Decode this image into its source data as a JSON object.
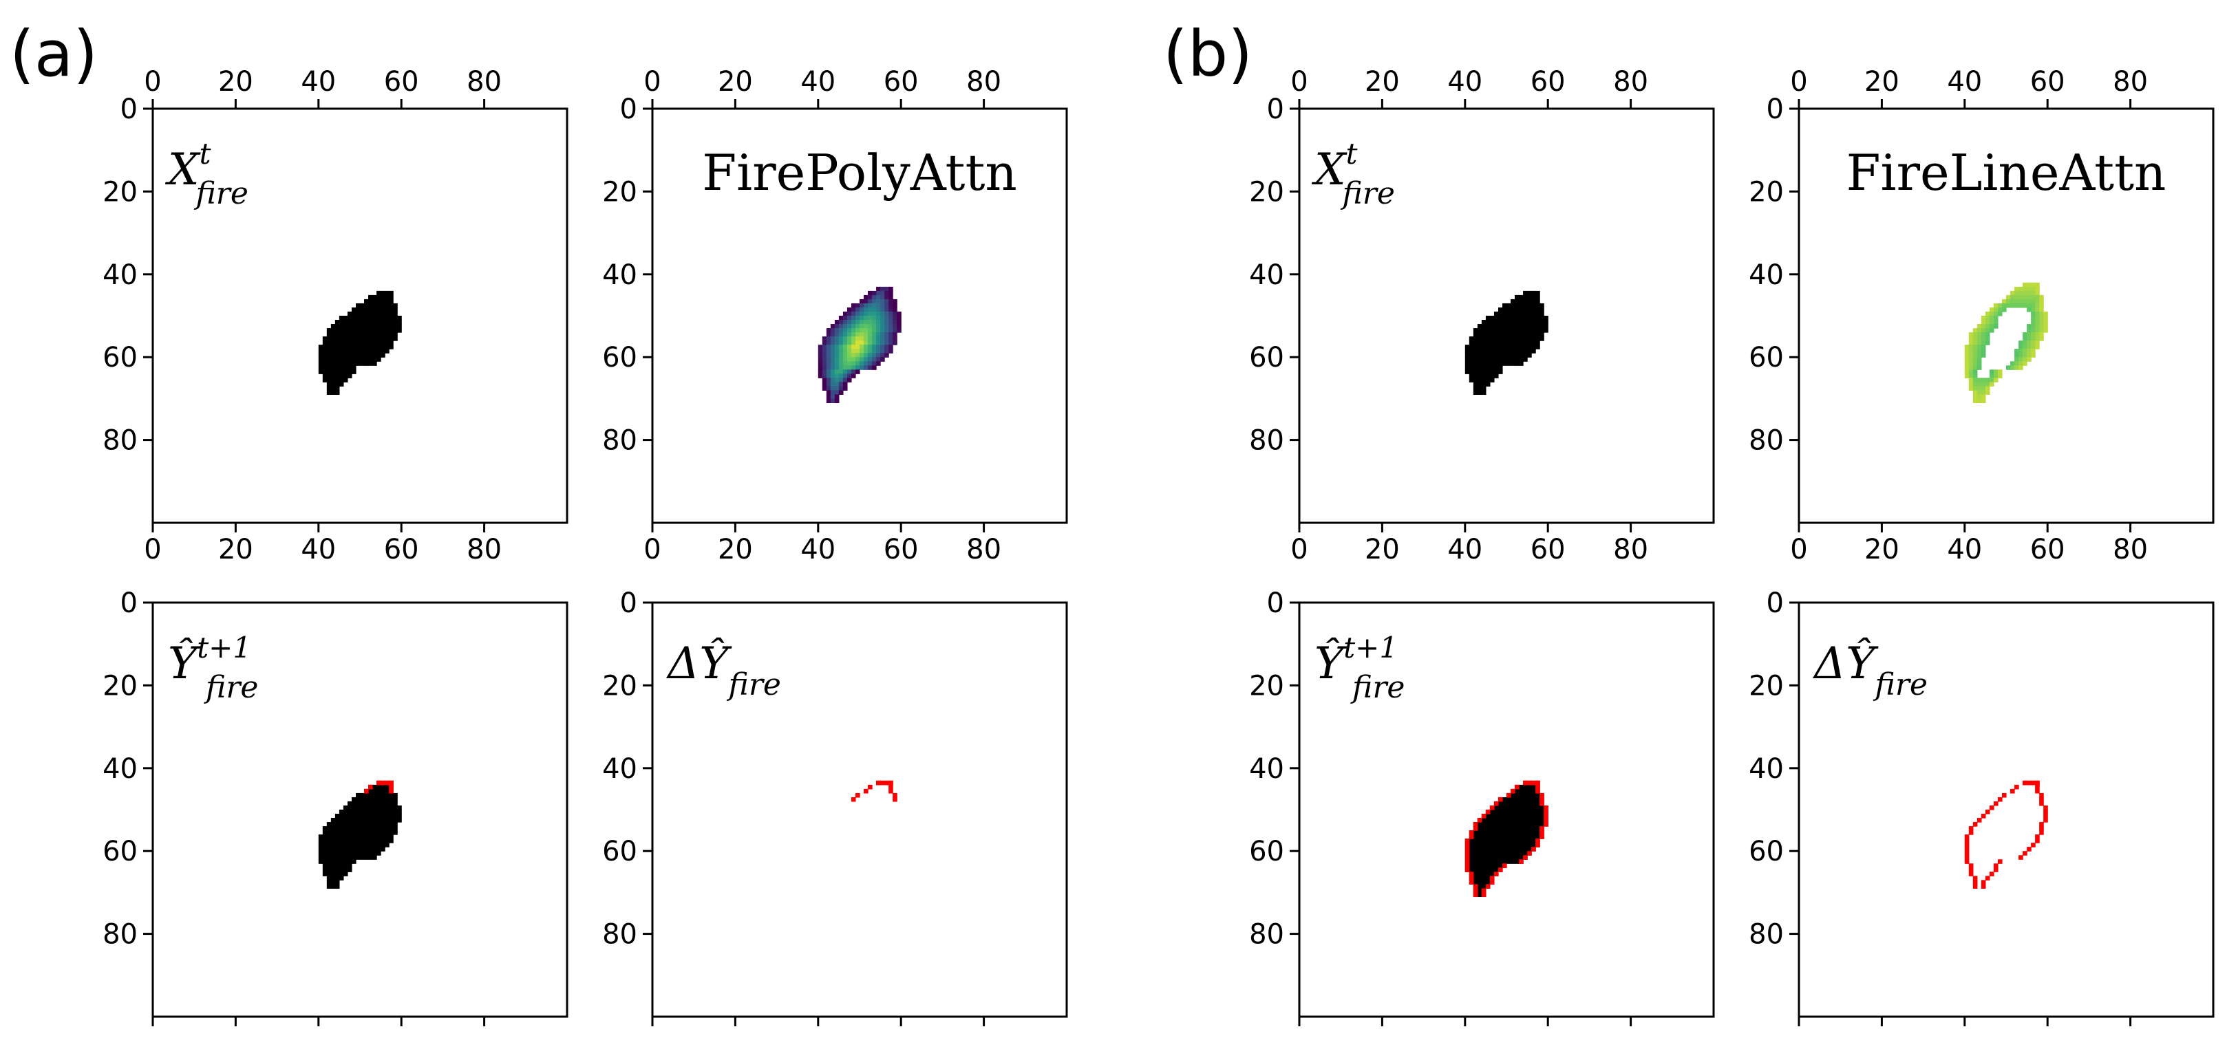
{
  "figure": {
    "panel_labels": [
      "(a)",
      "(b)"
    ],
    "colors": {
      "fire": "#000000",
      "delta": "#ff0000",
      "viridis_low": "#440154",
      "viridis_mid": "#21918c",
      "viridis_high": "#fde725",
      "axes": "#000000",
      "background": "#ffffff"
    }
  },
  "chart_data": [
    {
      "id": "a-top-left",
      "type": "heatmap",
      "kind": "binary-mask",
      "group": "(a)",
      "label": {
        "main": "X",
        "sup": "t",
        "sub": "fire"
      },
      "xlim": [
        0,
        100
      ],
      "ylim": [
        0,
        100
      ],
      "xticks": [
        0,
        20,
        40,
        60,
        80
      ],
      "yticks": [
        0,
        20,
        40,
        60,
        80
      ],
      "xticks_top": true,
      "xticks_bottom": true,
      "show_tick_labels_bottom": true,
      "mask": {
        "center": [
          48,
          56
        ],
        "rows": [
          44,
          68
        ]
      },
      "delta_mask": null
    },
    {
      "id": "a-top-right",
      "type": "heatmap",
      "kind": "attention-poly",
      "group": "(a)",
      "title": "FirePolyAttn",
      "xlim": [
        0,
        100
      ],
      "ylim": [
        0,
        100
      ],
      "xticks": [
        0,
        20,
        40,
        60,
        80
      ],
      "yticks": [
        0,
        20,
        40,
        60,
        80
      ],
      "xticks_top": true,
      "xticks_bottom": true,
      "show_tick_labels_bottom": true,
      "mask": {
        "center": [
          48,
          56
        ],
        "rows": [
          43,
          70
        ]
      },
      "colormap": "viridis",
      "value_range": [
        0,
        1
      ]
    },
    {
      "id": "a-bottom-left",
      "type": "heatmap",
      "kind": "binary-mask",
      "group": "(a)",
      "label": {
        "main": "Ŷ",
        "sup": "t+1",
        "sub": "fire"
      },
      "xlim": [
        0,
        100
      ],
      "ylim": [
        0,
        100
      ],
      "xticks": [
        0,
        20,
        40,
        60,
        80
      ],
      "yticks": [
        0,
        20,
        40,
        60,
        80
      ],
      "xticks_top": false,
      "xticks_bottom": true,
      "show_tick_labels_bottom": false,
      "mask": {
        "center": [
          48,
          56
        ],
        "rows": [
          43,
          68
        ]
      },
      "delta_mask": "partial-top"
    },
    {
      "id": "a-bottom-right",
      "type": "heatmap",
      "kind": "delta",
      "group": "(a)",
      "label": {
        "main": "ΔŶ",
        "sup": "",
        "sub": "fire"
      },
      "xlim": [
        0,
        100
      ],
      "ylim": [
        0,
        100
      ],
      "xticks": [
        0,
        20,
        40,
        60,
        80
      ],
      "yticks": [
        0,
        20,
        40,
        60,
        80
      ],
      "xticks_top": false,
      "xticks_bottom": true,
      "show_tick_labels_bottom": false,
      "delta_mask": "partial-top"
    },
    {
      "id": "b-top-left",
      "type": "heatmap",
      "kind": "binary-mask",
      "group": "(b)",
      "label": {
        "main": "X",
        "sup": "t",
        "sub": "fire"
      },
      "xlim": [
        0,
        100
      ],
      "ylim": [
        0,
        100
      ],
      "xticks": [
        0,
        20,
        40,
        60,
        80
      ],
      "yticks": [
        0,
        20,
        40,
        60,
        80
      ],
      "xticks_top": true,
      "xticks_bottom": true,
      "show_tick_labels_bottom": true,
      "mask": {
        "center": [
          48,
          56
        ],
        "rows": [
          44,
          68
        ]
      },
      "delta_mask": null
    },
    {
      "id": "b-top-right",
      "type": "heatmap",
      "kind": "attention-line",
      "group": "(b)",
      "title": "FireLineAttn",
      "xlim": [
        0,
        100
      ],
      "ylim": [
        0,
        100
      ],
      "xticks": [
        0,
        20,
        40,
        60,
        80
      ],
      "yticks": [
        0,
        20,
        40,
        60,
        80
      ],
      "xticks_top": true,
      "xticks_bottom": true,
      "show_tick_labels_bottom": true,
      "mask": {
        "center": [
          47,
          56
        ],
        "rows": [
          42,
          70
        ]
      },
      "colormap": "viridis",
      "value_range": [
        0,
        1
      ]
    },
    {
      "id": "b-bottom-left",
      "type": "heatmap",
      "kind": "binary-mask",
      "group": "(b)",
      "label": {
        "main": "Ŷ",
        "sup": "t+1",
        "sub": "fire"
      },
      "xlim": [
        0,
        100
      ],
      "ylim": [
        0,
        100
      ],
      "xticks": [
        0,
        20,
        40,
        60,
        80
      ],
      "yticks": [
        0,
        20,
        40,
        60,
        80
      ],
      "xticks_top": false,
      "xticks_bottom": true,
      "show_tick_labels_bottom": false,
      "mask": {
        "center": [
          48,
          56
        ],
        "rows": [
          43,
          70
        ]
      },
      "delta_mask": "outline"
    },
    {
      "id": "b-bottom-right",
      "type": "heatmap",
      "kind": "delta",
      "group": "(b)",
      "label": {
        "main": "ΔŶ",
        "sup": "",
        "sub": "fire"
      },
      "xlim": [
        0,
        100
      ],
      "ylim": [
        0,
        100
      ],
      "xticks": [
        0,
        20,
        40,
        60,
        80
      ],
      "yticks": [
        0,
        20,
        40,
        60,
        80
      ],
      "xticks_top": false,
      "xticks_bottom": true,
      "show_tick_labels_bottom": false,
      "delta_mask": "outline"
    }
  ]
}
